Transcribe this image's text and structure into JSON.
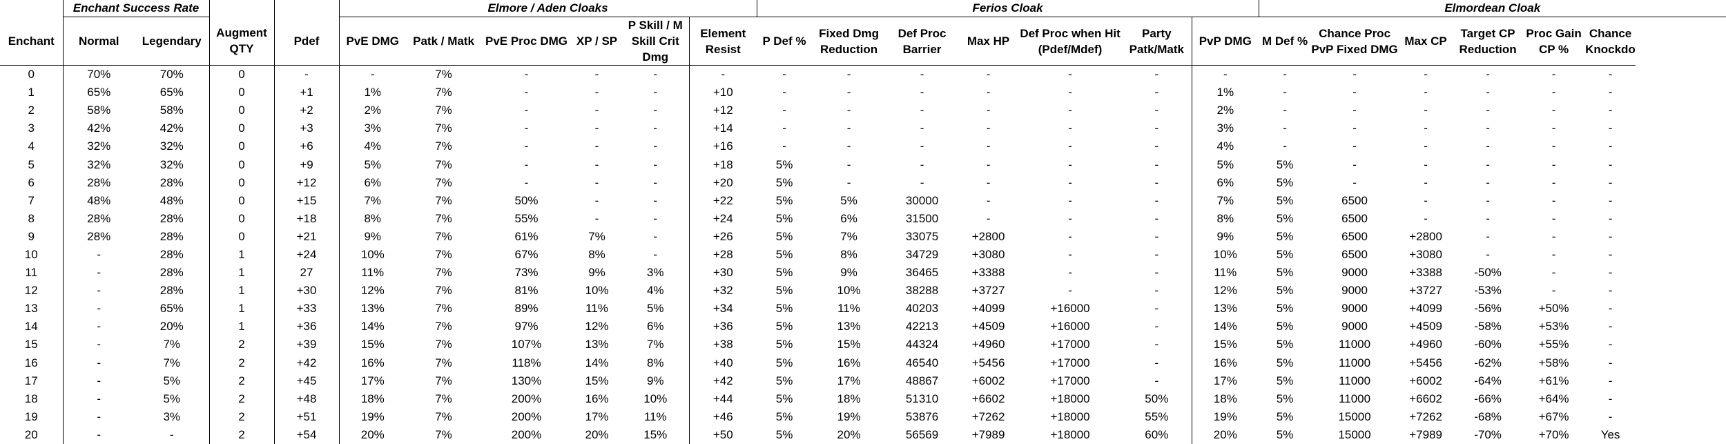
{
  "groups": [
    {
      "label": "",
      "span": 1
    },
    {
      "label": "Enchant Success Rate",
      "span": 2
    },
    {
      "label": "",
      "span": 1
    },
    {
      "label": "",
      "span": 1
    },
    {
      "label": "Elmore / Aden Cloaks",
      "span": 6
    },
    {
      "label": "Ferios Cloak",
      "span": 7
    },
    {
      "label": "Elmordean Cloak",
      "span": 8
    }
  ],
  "columns": [
    "Enchant",
    "Normal",
    "Legendary",
    "Augment QTY",
    "Pdef",
    "PvE DMG",
    "Patk / Matk",
    "PvE Proc DMG",
    "XP / SP",
    "P Skill / M Skill Crit Dmg",
    "Element Resist",
    "P Def %",
    "Fixed Dmg Reduction",
    "Def Proc Barrier",
    "Max HP",
    "Def Proc when Hit (Pdef/Mdef)",
    "Party Patk/Matk",
    "PvP DMG",
    "M Def %",
    "Chance Proc PvP Fixed DMG",
    "Max CP",
    "Target CP Reduction",
    "Proc Gain CP %",
    "Chance Knockdown"
  ],
  "rows": [
    [
      "0",
      "70%",
      "70%",
      "0",
      "-",
      "-",
      "7%",
      "-",
      "-",
      "-",
      "-",
      "-",
      "-",
      "-",
      "-",
      "-",
      "-",
      "-",
      "-",
      "-",
      "-",
      "-",
      "-",
      "-"
    ],
    [
      "1",
      "65%",
      "65%",
      "0",
      "+1",
      "1%",
      "7%",
      "-",
      "-",
      "-",
      "+10",
      "-",
      "-",
      "-",
      "-",
      "-",
      "-",
      "1%",
      "-",
      "-",
      "-",
      "-",
      "-",
      "-"
    ],
    [
      "2",
      "58%",
      "58%",
      "0",
      "+2",
      "2%",
      "7%",
      "-",
      "-",
      "-",
      "+12",
      "-",
      "-",
      "-",
      "-",
      "-",
      "-",
      "2%",
      "-",
      "-",
      "-",
      "-",
      "-",
      "-"
    ],
    [
      "3",
      "42%",
      "42%",
      "0",
      "+3",
      "3%",
      "7%",
      "-",
      "-",
      "-",
      "+14",
      "-",
      "-",
      "-",
      "-",
      "-",
      "-",
      "3%",
      "-",
      "-",
      "-",
      "-",
      "-",
      "-"
    ],
    [
      "4",
      "32%",
      "32%",
      "0",
      "+6",
      "4%",
      "7%",
      "-",
      "-",
      "-",
      "+16",
      "-",
      "-",
      "-",
      "-",
      "-",
      "-",
      "4%",
      "-",
      "-",
      "-",
      "-",
      "-",
      "-"
    ],
    [
      "5",
      "32%",
      "32%",
      "0",
      "+9",
      "5%",
      "7%",
      "-",
      "-",
      "-",
      "+18",
      "5%",
      "-",
      "-",
      "-",
      "-",
      "-",
      "5%",
      "5%",
      "-",
      "-",
      "-",
      "-",
      "-"
    ],
    [
      "6",
      "28%",
      "28%",
      "0",
      "+12",
      "6%",
      "7%",
      "-",
      "-",
      "-",
      "+20",
      "5%",
      "-",
      "-",
      "-",
      "-",
      "-",
      "6%",
      "5%",
      "-",
      "-",
      "-",
      "-",
      "-"
    ],
    [
      "7",
      "48%",
      "48%",
      "0",
      "+15",
      "7%",
      "7%",
      "50%",
      "-",
      "-",
      "+22",
      "5%",
      "5%",
      "30000",
      "-",
      "-",
      "-",
      "7%",
      "5%",
      "6500",
      "-",
      "-",
      "-",
      "-"
    ],
    [
      "8",
      "28%",
      "28%",
      "0",
      "+18",
      "8%",
      "7%",
      "55%",
      "-",
      "-",
      "+24",
      "5%",
      "6%",
      "31500",
      "-",
      "-",
      "-",
      "8%",
      "5%",
      "6500",
      "-",
      "-",
      "-",
      "-"
    ],
    [
      "9",
      "28%",
      "28%",
      "0",
      "+21",
      "9%",
      "7%",
      "61%",
      "7%",
      "-",
      "+26",
      "5%",
      "7%",
      "33075",
      "+2800",
      "-",
      "-",
      "9%",
      "5%",
      "6500",
      "+2800",
      "-",
      "-",
      "-"
    ],
    [
      "10",
      "-",
      "28%",
      "1",
      "+24",
      "10%",
      "7%",
      "67%",
      "8%",
      "-",
      "+28",
      "5%",
      "8%",
      "34729",
      "+3080",
      "-",
      "-",
      "10%",
      "5%",
      "6500",
      "+3080",
      "-",
      "-",
      "-"
    ],
    [
      "11",
      "-",
      "28%",
      "1",
      "27",
      "11%",
      "7%",
      "73%",
      "9%",
      "3%",
      "+30",
      "5%",
      "9%",
      "36465",
      "+3388",
      "-",
      "-",
      "11%",
      "5%",
      "9000",
      "+3388",
      "-50%",
      "-",
      "-"
    ],
    [
      "12",
      "-",
      "28%",
      "1",
      "+30",
      "12%",
      "7%",
      "81%",
      "10%",
      "4%",
      "+32",
      "5%",
      "10%",
      "38288",
      "+3727",
      "-",
      "-",
      "12%",
      "5%",
      "9000",
      "+3727",
      "-53%",
      "-",
      "-"
    ],
    [
      "13",
      "-",
      "65%",
      "1",
      "+33",
      "13%",
      "7%",
      "89%",
      "11%",
      "5%",
      "+34",
      "5%",
      "11%",
      "40203",
      "+4099",
      "+16000",
      "-",
      "13%",
      "5%",
      "9000",
      "+4099",
      "-56%",
      "+50%",
      "-"
    ],
    [
      "14",
      "-",
      "20%",
      "1",
      "+36",
      "14%",
      "7%",
      "97%",
      "12%",
      "6%",
      "+36",
      "5%",
      "13%",
      "42213",
      "+4509",
      "+16000",
      "-",
      "14%",
      "5%",
      "9000",
      "+4509",
      "-58%",
      "+53%",
      "-"
    ],
    [
      "15",
      "-",
      "7%",
      "2",
      "+39",
      "15%",
      "7%",
      "107%",
      "13%",
      "7%",
      "+38",
      "5%",
      "15%",
      "44324",
      "+4960",
      "+17000",
      "-",
      "15%",
      "5%",
      "11000",
      "+4960",
      "-60%",
      "+55%",
      "-"
    ],
    [
      "16",
      "-",
      "7%",
      "2",
      "+42",
      "16%",
      "7%",
      "118%",
      "14%",
      "8%",
      "+40",
      "5%",
      "16%",
      "46540",
      "+5456",
      "+17000",
      "-",
      "16%",
      "5%",
      "11000",
      "+5456",
      "-62%",
      "+58%",
      "-"
    ],
    [
      "17",
      "-",
      "5%",
      "2",
      "+45",
      "17%",
      "7%",
      "130%",
      "15%",
      "9%",
      "+42",
      "5%",
      "17%",
      "48867",
      "+6002",
      "+17000",
      "-",
      "17%",
      "5%",
      "11000",
      "+6002",
      "-64%",
      "+61%",
      "-"
    ],
    [
      "18",
      "-",
      "5%",
      "2",
      "+48",
      "18%",
      "7%",
      "200%",
      "16%",
      "10%",
      "+44",
      "5%",
      "18%",
      "51310",
      "+6602",
      "+18000",
      "50%",
      "18%",
      "5%",
      "11000",
      "+6602",
      "-66%",
      "+64%",
      "-"
    ],
    [
      "19",
      "-",
      "3%",
      "2",
      "+51",
      "19%",
      "7%",
      "200%",
      "17%",
      "11%",
      "+46",
      "5%",
      "19%",
      "53876",
      "+7262",
      "+18000",
      "55%",
      "19%",
      "5%",
      "15000",
      "+7262",
      "-68%",
      "+67%",
      "-"
    ],
    [
      "20",
      "-",
      "-",
      "2",
      "+54",
      "20%",
      "7%",
      "200%",
      "20%",
      "15%",
      "+50",
      "5%",
      "20%",
      "56569",
      "+7989",
      "+18000",
      "60%",
      "20%",
      "5%",
      "15000",
      "+7989",
      "-70%",
      "+70%",
      "Yes"
    ]
  ]
}
